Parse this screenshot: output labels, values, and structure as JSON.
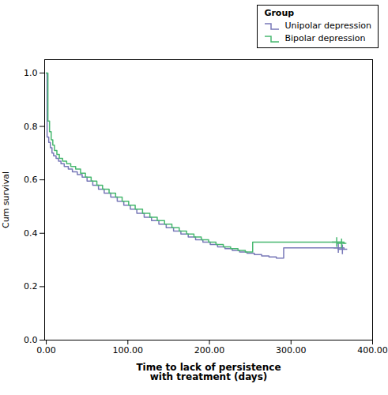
{
  "chart_data": {
    "type": "step",
    "title": "",
    "xlabel": "Time to lack of persistence\nwith treatment (days)",
    "ylabel": "Cum survival",
    "xlim": [
      -2,
      400
    ],
    "ylim": [
      0.0,
      1.05
    ],
    "xticks": [
      {
        "value": 0,
        "label": "0.00"
      },
      {
        "value": 100,
        "label": "100.00"
      },
      {
        "value": 200,
        "label": "200.00"
      },
      {
        "value": 300,
        "label": "300.00"
      },
      {
        "value": 400,
        "label": "400.00"
      }
    ],
    "yticks": [
      {
        "value": 0,
        "label": "0.0"
      },
      0.2,
      0.4,
      0.6,
      0.8,
      {
        "value": 1,
        "label": "1.0"
      }
    ],
    "grid": false,
    "legend": "top-right",
    "legend_title": "Group",
    "marker": "plus",
    "series": [
      {
        "name": "Unipolar depression",
        "color": "#7878b8",
        "x": [
          0,
          1,
          3,
          5,
          7,
          9,
          12,
          15,
          18,
          22,
          27,
          32,
          38,
          44,
          50,
          57,
          64,
          71,
          79,
          87,
          95,
          103,
          111,
          120,
          129,
          138,
          147,
          156,
          165,
          174,
          183,
          192,
          201,
          210,
          219,
          228,
          237,
          246,
          255,
          264,
          273,
          282,
          291,
          300,
          309,
          318,
          327,
          336,
          345,
          354,
          363,
          365
        ],
        "values": [
          1.0,
          0.76,
          0.74,
          0.72,
          0.7,
          0.69,
          0.68,
          0.67,
          0.66,
          0.65,
          0.64,
          0.63,
          0.62,
          0.61,
          0.595,
          0.58,
          0.565,
          0.55,
          0.535,
          0.52,
          0.505,
          0.49,
          0.475,
          0.46,
          0.447,
          0.434,
          0.421,
          0.408,
          0.397,
          0.386,
          0.376,
          0.367,
          0.358,
          0.349,
          0.342,
          0.336,
          0.33,
          0.325,
          0.32,
          0.315,
          0.311,
          0.307,
          0.345,
          0.345,
          0.345,
          0.345,
          0.345,
          0.345,
          0.345,
          0.345,
          0.345,
          0.34
        ],
        "censor_x": [
          358,
          363
        ],
        "censor_values": [
          0.345,
          0.34
        ]
      },
      {
        "name": "Bipolar depression",
        "color": "#48b870",
        "x": [
          0,
          2,
          4,
          6,
          8,
          10,
          13,
          16,
          20,
          25,
          30,
          36,
          42,
          48,
          55,
          62,
          69,
          77,
          85,
          93,
          101,
          109,
          118,
          127,
          136,
          145,
          154,
          163,
          172,
          181,
          190,
          199,
          208,
          217,
          226,
          235,
          244,
          253,
          262,
          271,
          280,
          289,
          298,
          307,
          316,
          325,
          334,
          343,
          352,
          361,
          365
        ],
        "values": [
          1.0,
          0.82,
          0.78,
          0.75,
          0.73,
          0.71,
          0.695,
          0.68,
          0.67,
          0.66,
          0.65,
          0.64,
          0.625,
          0.61,
          0.595,
          0.58,
          0.565,
          0.55,
          0.535,
          0.52,
          0.505,
          0.49,
          0.475,
          0.46,
          0.447,
          0.434,
          0.421,
          0.408,
          0.397,
          0.386,
          0.376,
          0.367,
          0.358,
          0.349,
          0.342,
          0.336,
          0.33,
          0.367,
          0.367,
          0.367,
          0.367,
          0.367,
          0.367,
          0.367,
          0.367,
          0.367,
          0.367,
          0.367,
          0.367,
          0.367,
          0.362
        ],
        "censor_x": [
          356,
          362
        ],
        "censor_values": [
          0.367,
          0.362
        ]
      }
    ]
  }
}
